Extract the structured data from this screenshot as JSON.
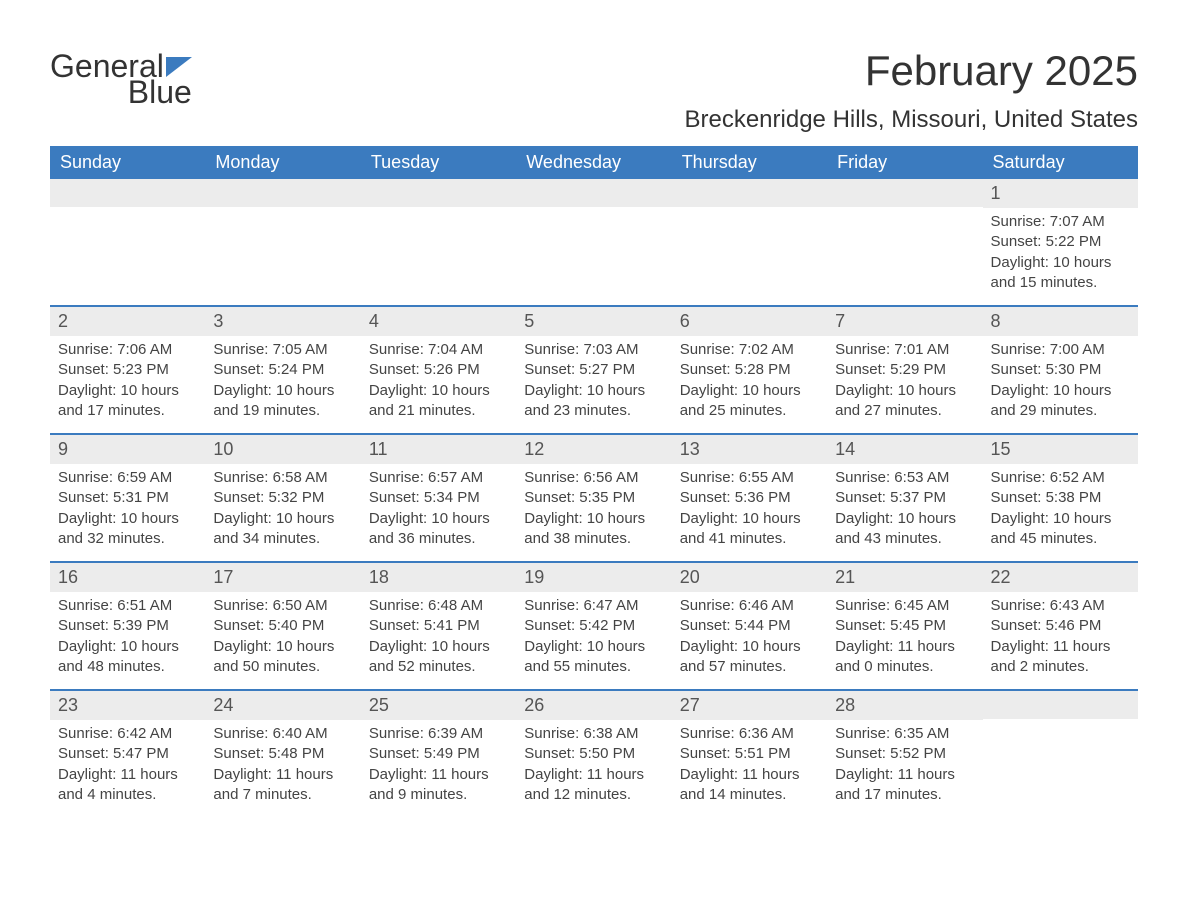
{
  "logo": {
    "text_part1": "General",
    "text_part2": "Blue",
    "flag_color": "#3b7bbf"
  },
  "title": {
    "month_year": "February 2025",
    "location": "Breckenridge Hills, Missouri, United States"
  },
  "colors": {
    "header_bg": "#3b7bbf",
    "header_text": "#ffffff",
    "daynum_bg": "#ececec",
    "body_text": "#444444",
    "title_text": "#333333"
  },
  "day_headers": [
    "Sunday",
    "Monday",
    "Tuesday",
    "Wednesday",
    "Thursday",
    "Friday",
    "Saturday"
  ],
  "weeks": [
    [
      {
        "day": "",
        "sunrise": "",
        "sunset": "",
        "daylight": ""
      },
      {
        "day": "",
        "sunrise": "",
        "sunset": "",
        "daylight": ""
      },
      {
        "day": "",
        "sunrise": "",
        "sunset": "",
        "daylight": ""
      },
      {
        "day": "",
        "sunrise": "",
        "sunset": "",
        "daylight": ""
      },
      {
        "day": "",
        "sunrise": "",
        "sunset": "",
        "daylight": ""
      },
      {
        "day": "",
        "sunrise": "",
        "sunset": "",
        "daylight": ""
      },
      {
        "day": "1",
        "sunrise": "Sunrise: 7:07 AM",
        "sunset": "Sunset: 5:22 PM",
        "daylight": "Daylight: 10 hours and 15 minutes."
      }
    ],
    [
      {
        "day": "2",
        "sunrise": "Sunrise: 7:06 AM",
        "sunset": "Sunset: 5:23 PM",
        "daylight": "Daylight: 10 hours and 17 minutes."
      },
      {
        "day": "3",
        "sunrise": "Sunrise: 7:05 AM",
        "sunset": "Sunset: 5:24 PM",
        "daylight": "Daylight: 10 hours and 19 minutes."
      },
      {
        "day": "4",
        "sunrise": "Sunrise: 7:04 AM",
        "sunset": "Sunset: 5:26 PM",
        "daylight": "Daylight: 10 hours and 21 minutes."
      },
      {
        "day": "5",
        "sunrise": "Sunrise: 7:03 AM",
        "sunset": "Sunset: 5:27 PM",
        "daylight": "Daylight: 10 hours and 23 minutes."
      },
      {
        "day": "6",
        "sunrise": "Sunrise: 7:02 AM",
        "sunset": "Sunset: 5:28 PM",
        "daylight": "Daylight: 10 hours and 25 minutes."
      },
      {
        "day": "7",
        "sunrise": "Sunrise: 7:01 AM",
        "sunset": "Sunset: 5:29 PM",
        "daylight": "Daylight: 10 hours and 27 minutes."
      },
      {
        "day": "8",
        "sunrise": "Sunrise: 7:00 AM",
        "sunset": "Sunset: 5:30 PM",
        "daylight": "Daylight: 10 hours and 29 minutes."
      }
    ],
    [
      {
        "day": "9",
        "sunrise": "Sunrise: 6:59 AM",
        "sunset": "Sunset: 5:31 PM",
        "daylight": "Daylight: 10 hours and 32 minutes."
      },
      {
        "day": "10",
        "sunrise": "Sunrise: 6:58 AM",
        "sunset": "Sunset: 5:32 PM",
        "daylight": "Daylight: 10 hours and 34 minutes."
      },
      {
        "day": "11",
        "sunrise": "Sunrise: 6:57 AM",
        "sunset": "Sunset: 5:34 PM",
        "daylight": "Daylight: 10 hours and 36 minutes."
      },
      {
        "day": "12",
        "sunrise": "Sunrise: 6:56 AM",
        "sunset": "Sunset: 5:35 PM",
        "daylight": "Daylight: 10 hours and 38 minutes."
      },
      {
        "day": "13",
        "sunrise": "Sunrise: 6:55 AM",
        "sunset": "Sunset: 5:36 PM",
        "daylight": "Daylight: 10 hours and 41 minutes."
      },
      {
        "day": "14",
        "sunrise": "Sunrise: 6:53 AM",
        "sunset": "Sunset: 5:37 PM",
        "daylight": "Daylight: 10 hours and 43 minutes."
      },
      {
        "day": "15",
        "sunrise": "Sunrise: 6:52 AM",
        "sunset": "Sunset: 5:38 PM",
        "daylight": "Daylight: 10 hours and 45 minutes."
      }
    ],
    [
      {
        "day": "16",
        "sunrise": "Sunrise: 6:51 AM",
        "sunset": "Sunset: 5:39 PM",
        "daylight": "Daylight: 10 hours and 48 minutes."
      },
      {
        "day": "17",
        "sunrise": "Sunrise: 6:50 AM",
        "sunset": "Sunset: 5:40 PM",
        "daylight": "Daylight: 10 hours and 50 minutes."
      },
      {
        "day": "18",
        "sunrise": "Sunrise: 6:48 AM",
        "sunset": "Sunset: 5:41 PM",
        "daylight": "Daylight: 10 hours and 52 minutes."
      },
      {
        "day": "19",
        "sunrise": "Sunrise: 6:47 AM",
        "sunset": "Sunset: 5:42 PM",
        "daylight": "Daylight: 10 hours and 55 minutes."
      },
      {
        "day": "20",
        "sunrise": "Sunrise: 6:46 AM",
        "sunset": "Sunset: 5:44 PM",
        "daylight": "Daylight: 10 hours and 57 minutes."
      },
      {
        "day": "21",
        "sunrise": "Sunrise: 6:45 AM",
        "sunset": "Sunset: 5:45 PM",
        "daylight": "Daylight: 11 hours and 0 minutes."
      },
      {
        "day": "22",
        "sunrise": "Sunrise: 6:43 AM",
        "sunset": "Sunset: 5:46 PM",
        "daylight": "Daylight: 11 hours and 2 minutes."
      }
    ],
    [
      {
        "day": "23",
        "sunrise": "Sunrise: 6:42 AM",
        "sunset": "Sunset: 5:47 PM",
        "daylight": "Daylight: 11 hours and 4 minutes."
      },
      {
        "day": "24",
        "sunrise": "Sunrise: 6:40 AM",
        "sunset": "Sunset: 5:48 PM",
        "daylight": "Daylight: 11 hours and 7 minutes."
      },
      {
        "day": "25",
        "sunrise": "Sunrise: 6:39 AM",
        "sunset": "Sunset: 5:49 PM",
        "daylight": "Daylight: 11 hours and 9 minutes."
      },
      {
        "day": "26",
        "sunrise": "Sunrise: 6:38 AM",
        "sunset": "Sunset: 5:50 PM",
        "daylight": "Daylight: 11 hours and 12 minutes."
      },
      {
        "day": "27",
        "sunrise": "Sunrise: 6:36 AM",
        "sunset": "Sunset: 5:51 PM",
        "daylight": "Daylight: 11 hours and 14 minutes."
      },
      {
        "day": "28",
        "sunrise": "Sunrise: 6:35 AM",
        "sunset": "Sunset: 5:52 PM",
        "daylight": "Daylight: 11 hours and 17 minutes."
      },
      {
        "day": "",
        "sunrise": "",
        "sunset": "",
        "daylight": ""
      }
    ]
  ]
}
